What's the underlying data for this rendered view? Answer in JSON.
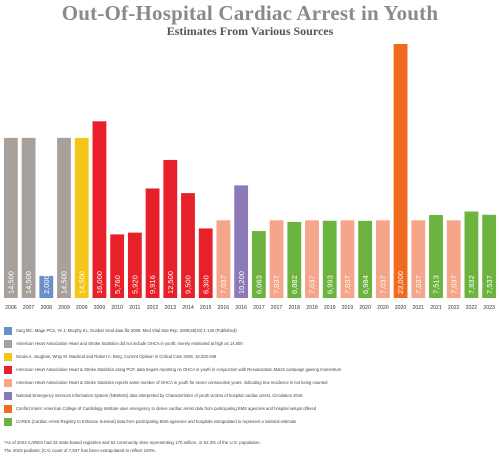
{
  "header": {
    "title": "Out-Of-Hospital Cardiac Arrest in Youth",
    "subtitle": "Estimates From Various Sources"
  },
  "chart_data": {
    "type": "bar",
    "title": "Out-Of-Hospital Cardiac Arrest in Youth",
    "subtitle": "Estimates From Various Sources",
    "ylim": [
      0,
      23000
    ],
    "grid": false,
    "legend_position": "bottom",
    "bars": [
      {
        "year": "2006",
        "value": 14500,
        "label": "14,500",
        "source": 1
      },
      {
        "year": "2007",
        "value": 14500,
        "label": "14,500",
        "source": 1
      },
      {
        "year": "2008",
        "value": 2000,
        "label": "2,000",
        "source": 0
      },
      {
        "year": "2009",
        "value": 14500,
        "label": "14,500",
        "source": 1
      },
      {
        "year": "2009",
        "value": 14500,
        "label": "14,500",
        "source": 2
      },
      {
        "year": "2009",
        "value": 16000,
        "label": "16,000",
        "source": 3
      },
      {
        "year": "2010",
        "value": 5760,
        "label": "5,760",
        "source": 3
      },
      {
        "year": "2011",
        "value": 5920,
        "label": "5,920",
        "source": 3
      },
      {
        "year": "2012",
        "value": 9916,
        "label": "9,916",
        "source": 3
      },
      {
        "year": "2013",
        "value": 12500,
        "label": "12,500",
        "source": 3
      },
      {
        "year": "2014",
        "value": 9500,
        "label": "9,500",
        "source": 3
      },
      {
        "year": "2015",
        "value": 6300,
        "label": "6,300",
        "source": 3
      },
      {
        "year": "2016",
        "value": 7037,
        "label": "7,037",
        "source": 4
      },
      {
        "year": "2016",
        "value": 10200,
        "label": "10,200",
        "source": 5
      },
      {
        "year": "2017",
        "value": 6063,
        "label": "6,063",
        "source": 7
      },
      {
        "year": "2017",
        "value": 7037,
        "label": "7,037",
        "source": 4
      },
      {
        "year": "2018",
        "value": 6882,
        "label": "6,882",
        "source": 7
      },
      {
        "year": "2018",
        "value": 7037,
        "label": "7,037",
        "source": 4
      },
      {
        "year": "2019",
        "value": 6993,
        "label": "6,993",
        "source": 7
      },
      {
        "year": "2019",
        "value": 7037,
        "label": "7,037",
        "source": 4
      },
      {
        "year": "2020",
        "value": 6984,
        "label": "6,984",
        "source": 7
      },
      {
        "year": "2020",
        "value": 7037,
        "label": "7,037",
        "source": 4
      },
      {
        "year": "2020",
        "value": 23000,
        "label": "23,000",
        "source": 6
      },
      {
        "year": "2021",
        "value": 7037,
        "label": "7,037",
        "source": 4
      },
      {
        "year": "2021",
        "value": 7513,
        "label": "7,513",
        "source": 7
      },
      {
        "year": "2022",
        "value": 7037,
        "label": "7,037",
        "source": 4
      },
      {
        "year": "2022",
        "value": 7832,
        "label": "7,832",
        "source": 7
      },
      {
        "year": "2023",
        "value": 7537,
        "label": "7,537",
        "source": 7
      }
    ],
    "sources": [
      {
        "name": "Sarg MC, Mage PCS, Ye J, Murphy KL, Dunbar Srod data file 2008. Med Vital Stat Rep. 2008;56(10):1-120 (Published)",
        "color": "#6b8fc8"
      },
      {
        "name": "American Heart Association Heart and Stroke Statistics did not include OHCA in youth; merely estimated at high as 14,500",
        "color": "#a8a09a"
      },
      {
        "name": "Nicola A. Vaughan, Wray M. Macleod and Robert A. Berg, Current Opinion in Critical Care 2009, 15:203-208",
        "color": "#f5c518"
      },
      {
        "name": "American Heart Association Heart & Stroke Statistics using PCP, data begins reporting on OHCA in youth in conjunction with Resuscitation Match campaign gaining momentum",
        "color": "#e8202a"
      },
      {
        "name": "American Heart Association Heart & Stroke Statistics reports same number of OHCA in youth for seven consecutive years, indicating true incidence is not being counted",
        "color": "#f4a58a"
      },
      {
        "name": "National Emergency Services Information System (NEMSIS) data interpreted by Characteristics of youth victims of hospital cardiac arrest, Circulation 2016",
        "color": "#8e79b8"
      },
      {
        "name": "Conflict Intent: American College of Cardiology Institute uses emergency to derive cardiac arrest data from participating EMS agencies and hospital setups offered",
        "color": "#f06a20"
      },
      {
        "name": "CARES (Cardiac Arrest Registry to Enhance Survival) data from participating EMS agencies and hospitals extrapolated to represent a national estimate",
        "color": "#6cb33f"
      }
    ]
  },
  "footnotes": [
    "*As of 2023 CARES had 34 state-based registries and 62 community sites representing 170 million, or 52.3% of the U.S. population.",
    "The 2023 pediatric (CA) count of 7,537 has been extrapolated to reflect 100%."
  ]
}
